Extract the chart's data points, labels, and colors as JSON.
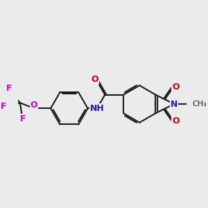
{
  "bg_color": "#ebebeb",
  "bond_color": "#1a1a1a",
  "bond_width": 1.5,
  "colors": {
    "N": "#1a1acc",
    "O": "#cc0000",
    "F": "#cc00cc",
    "O_ether": "#cc00cc",
    "C": "#1a1a1a",
    "NH": "#1a1acc"
  }
}
